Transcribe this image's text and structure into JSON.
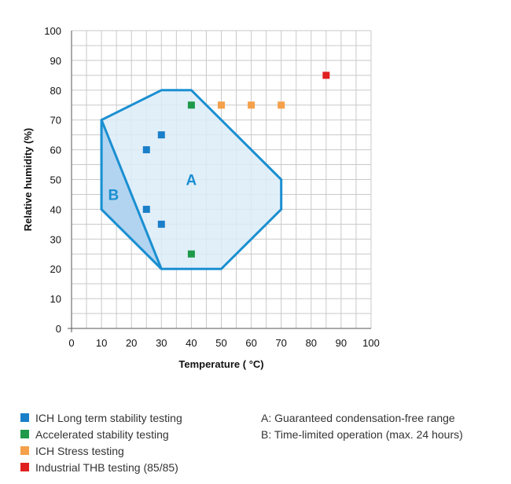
{
  "chart_data": {
    "type": "scatter",
    "xlabel": "Temperature ( °C)",
    "ylabel": "Relative humidity (%)",
    "xlim": [
      0,
      100
    ],
    "ylim": [
      0,
      100
    ],
    "xticks": [
      0,
      10,
      20,
      30,
      40,
      50,
      60,
      70,
      80,
      90,
      100
    ],
    "yticks": [
      0,
      10,
      20,
      30,
      40,
      50,
      60,
      70,
      80,
      90,
      100
    ],
    "grid": true,
    "regions": [
      {
        "label": "A",
        "color": "#1a8fd1",
        "fill": "#dcecf8",
        "polygon": [
          [
            10,
            70
          ],
          [
            30,
            80
          ],
          [
            40,
            80
          ],
          [
            50,
            70
          ],
          [
            70,
            50
          ],
          [
            70,
            40
          ],
          [
            50,
            20
          ],
          [
            30,
            20
          ],
          [
            10,
            40
          ]
        ],
        "label_pos": [
          40,
          50
        ]
      },
      {
        "label": "B",
        "color": "#1a8fd1",
        "fill": "#a9cfee",
        "polygon": [
          [
            10,
            70
          ],
          [
            10,
            40
          ],
          [
            30,
            20
          ]
        ],
        "label_pos": [
          14,
          45
        ]
      }
    ],
    "series": [
      {
        "color": "#1a7fc9",
        "points": [
          [
            25,
            60
          ],
          [
            30,
            65
          ],
          [
            25,
            40
          ],
          [
            30,
            35
          ]
        ]
      },
      {
        "color": "#1e9a4a",
        "points": [
          [
            40,
            75
          ],
          [
            40,
            25
          ]
        ]
      },
      {
        "color": "#f5a04a",
        "points": [
          [
            50,
            75
          ],
          [
            60,
            75
          ],
          [
            70,
            75
          ]
        ]
      },
      {
        "color": "#e02020",
        "points": [
          [
            85,
            85
          ]
        ]
      }
    ]
  },
  "legend": {
    "items": [
      {
        "label": "ICH Long term stability testing",
        "color": "#1a7fc9"
      },
      {
        "label": "Accelerated stability testing",
        "color": "#1e9a4a"
      },
      {
        "label": "ICH Stress testing",
        "color": "#f5a04a"
      },
      {
        "label": "Industrial THB testing (85/85)",
        "color": "#e02020"
      }
    ],
    "notes": [
      "A: Guaranteed condensation-free range",
      "B: Time-limited operation (max. 24 hours)"
    ]
  }
}
